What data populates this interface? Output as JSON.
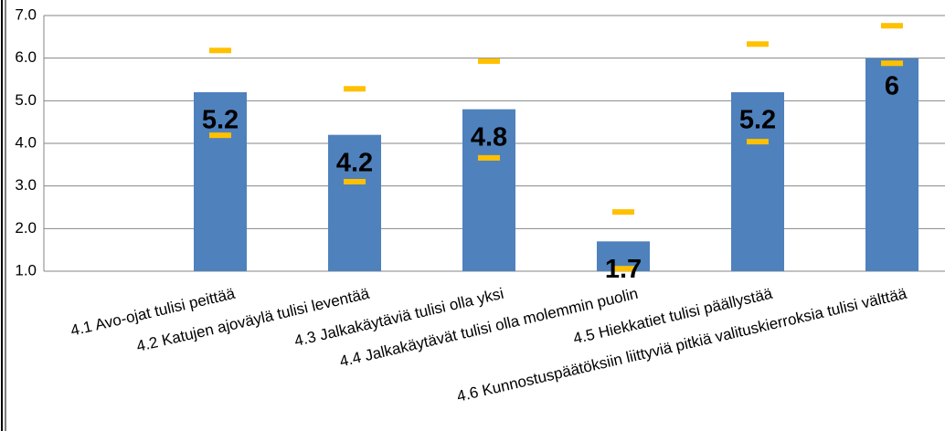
{
  "chart_data": {
    "type": "bar",
    "categories": [
      "4.1  Avo-ojat tulisi peittää",
      "4.2  Katujen ajoväylä tulisi leventää",
      "4.3  Jalkakäytäviä tulisi olla yksi",
      "4.4  Jalkakäytävät tulisi olla molemmin puolin",
      "4.5  Hiekkatiet tulisi päällystää",
      "4.6  Kunnostuspäätöksiin liittyviä pitkiä valituskierroksia tulisi välttää"
    ],
    "values": [
      5.2,
      4.2,
      4.8,
      1.7,
      5.2,
      6.0
    ],
    "color": "#4f81bd",
    "upper": [
      6.18,
      5.28,
      5.93,
      2.39,
      6.33,
      6.76
    ],
    "lower": [
      4.19,
      3.1,
      3.66,
      1.06,
      4.04,
      5.88
    ],
    "marker_color": "#ffc000",
    "ylim": [
      1,
      7
    ],
    "yticks": [
      {
        "value": 1,
        "label": "1.0"
      },
      {
        "value": 2,
        "label": "2.0"
      },
      {
        "value": 3,
        "label": "3.0"
      },
      {
        "value": 4,
        "label": "4.0"
      },
      {
        "value": 5,
        "label": "5.0"
      },
      {
        "value": 6,
        "label": "6.0"
      },
      {
        "value": 7,
        "label": "7.0"
      }
    ],
    "grid": true
  }
}
